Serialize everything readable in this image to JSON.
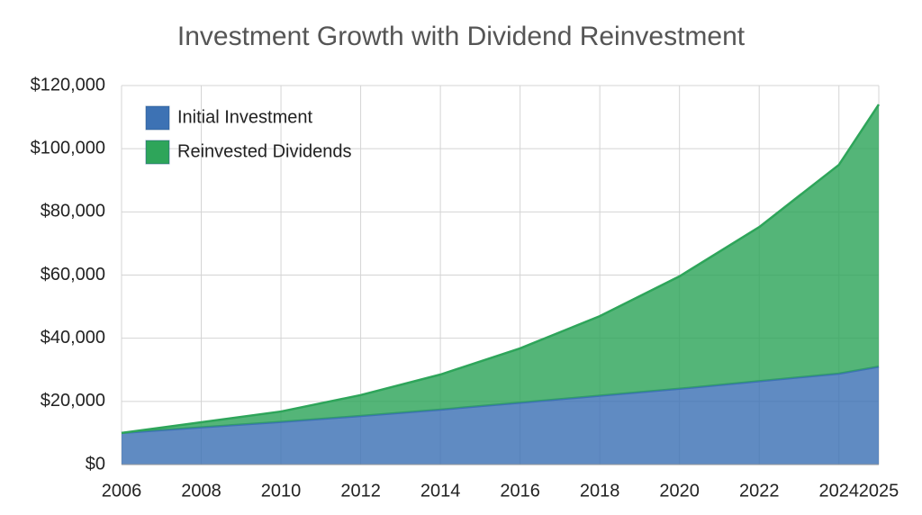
{
  "chart_data": {
    "type": "stacked_area",
    "title": "Investment Growth with Dividend Reinvestment",
    "x": [
      2006,
      2008,
      2010,
      2012,
      2014,
      2016,
      2018,
      2020,
      2022,
      2024,
      2025
    ],
    "series": [
      {
        "name": "Initial Investment",
        "color": "#3d72b4",
        "values": [
          10000,
          11800,
          13500,
          15400,
          17400,
          19600,
          21800,
          24000,
          26400,
          28800,
          31000
        ]
      },
      {
        "name": "Reinvested Dividends",
        "color": "#2ea55a",
        "values": [
          0,
          1600,
          3300,
          6600,
          11100,
          17200,
          25200,
          35600,
          48800,
          66100,
          83000
        ]
      }
    ],
    "xlim": [
      2006,
      2025
    ],
    "xticks": [
      2006,
      2008,
      2010,
      2012,
      2014,
      2016,
      2018,
      2020,
      2022,
      2024,
      2025
    ],
    "ylim": [
      0,
      120000
    ],
    "yticks": [
      {
        "value": 0,
        "label": "$0"
      },
      {
        "value": 20000,
        "label": "$20,000"
      },
      {
        "value": 40000,
        "label": "$40,000"
      },
      {
        "value": 60000,
        "label": "$60,000"
      },
      {
        "value": 80000,
        "label": "$80,000"
      },
      {
        "value": 100000,
        "label": "$100,000"
      },
      {
        "value": 120000,
        "label": "$120,000"
      }
    ],
    "grid": true,
    "legend": "upper-left"
  }
}
